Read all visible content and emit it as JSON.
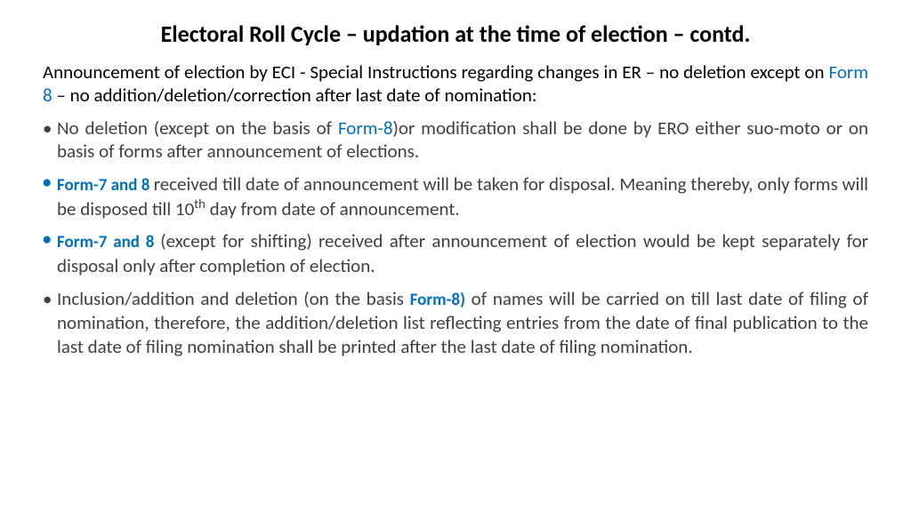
{
  "title": "Electoral Roll Cycle – updation at the time of election – contd.",
  "intro": {
    "p1a": "Announcement of election by ECI - Special Instructions regarding changes in ER – no deletion except on ",
    "form8": "Form 8",
    "p1b": " – no addition/deletion/correction after last date of nomination:"
  },
  "bullets": {
    "b1a": "No deletion (except on the basis of ",
    "b1_form": "Form-8",
    "b1b": ")or modification shall be done by ERO either suo-moto or on basis of forms after announcement of elections.",
    "b2_form": "Form-7 and 8 ",
    "b2a": "received till date of announcement will be taken for disposal. Meaning thereby,  only forms will be disposed till 10",
    "b2_sup": "th",
    "b2b": " day from date of announcement.",
    "b3_form": "Form-7 and 8 ",
    "b3a": "(except for shifting) received after announcement of election would be kept separately for disposal only after completion of election.",
    "b4a": "Inclusion/addition and deletion (on the basis ",
    "b4_form": "Form-8",
    "b4_paren": ")",
    "b4b": " of names will be carried on till last date of filing of nomination, therefore, the addition/deletion list reflecting entries from the date of final publication to the last date of filing nomination shall be printed after the last date of filing nomination."
  },
  "colors": {
    "link": "#0070c0",
    "body": "#404040",
    "title": "#000000",
    "bg": "#ffffff"
  }
}
